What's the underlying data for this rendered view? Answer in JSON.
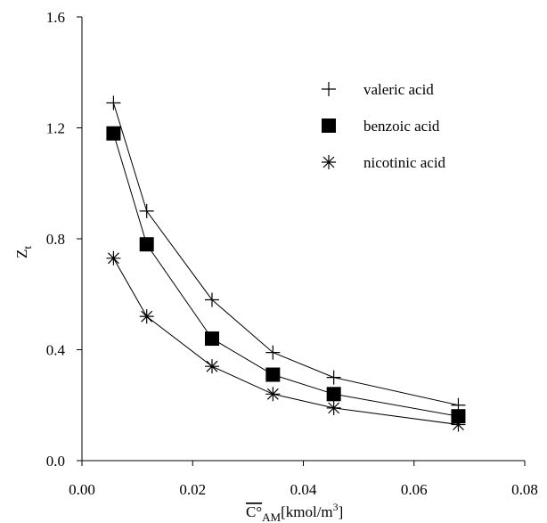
{
  "chart_data": {
    "type": "line",
    "x": [
      0.0057,
      0.0117,
      0.0235,
      0.0345,
      0.0455,
      0.068
    ],
    "series": [
      {
        "name": "valeric acid",
        "color": "#000000",
        "marker": "plus",
        "values": [
          1.29,
          0.9,
          0.58,
          0.39,
          0.3,
          0.2
        ]
      },
      {
        "name": "benzoic acid",
        "color": "#000000",
        "marker": "square",
        "values": [
          1.18,
          0.78,
          0.44,
          0.31,
          0.24,
          0.16
        ]
      },
      {
        "name": "nicotinic acid",
        "color": "#000000",
        "marker": "asterisk",
        "values": [
          0.73,
          0.52,
          0.34,
          0.24,
          0.19,
          0.13
        ]
      }
    ],
    "xlim": [
      0,
      0.08
    ],
    "xticks": [
      {
        "value": 0,
        "label": "0.00"
      },
      0.02,
      0.04,
      0.06,
      0.08
    ],
    "ylim": [
      0,
      1.6
    ],
    "yticks": [
      {
        "value": 0,
        "label": "0.0"
      },
      0.4,
      0.8,
      1.2,
      1.6
    ],
    "ylabel": {
      "main": "Z",
      "sub": "t"
    },
    "xlabel": {
      "main": "C°",
      "sub": "AM",
      "unit": "[kmol/m",
      "sup": "3",
      "end": "]"
    },
    "grid": false
  }
}
